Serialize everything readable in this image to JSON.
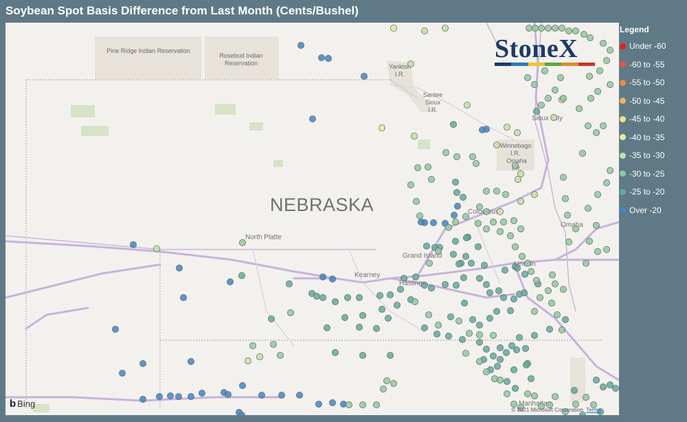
{
  "title": "Soybean Spot Basis Difference from Last Month (Cents/Bushel)",
  "map": {
    "state_label": "NEBRASKA",
    "reservations": [
      "Pine Ridge Indian Reservation",
      "Rosebud Indian Reservation",
      "Yankton I.R.",
      "Santee Sioux I.R.",
      "Winnebago I.R.",
      "Omaha I.R."
    ],
    "cities": [
      "North Platte",
      "Kearney",
      "Grand Island",
      "Hastings",
      "Columbus",
      "Omaha",
      "Lincoln",
      "Sioux City",
      "Manhattan"
    ],
    "attribution_bing": "Bing",
    "copyright": "© 2021 Microsoft Corporation",
    "terms": "Terms"
  },
  "logo": {
    "text": "StoneX",
    "bar_colors": [
      "#1d3a66",
      "#2a7bc0",
      "#f1c232",
      "#58a846",
      "#e08b2a",
      "#c0392b"
    ]
  },
  "legend": {
    "title": "Legend",
    "items": [
      {
        "label": "Under -60",
        "color": "#e02020"
      },
      {
        "label": "-60 to -55",
        "color": "#e8553a"
      },
      {
        "label": "-55 to -50",
        "color": "#f08a3c"
      },
      {
        "label": "-50 to -45",
        "color": "#f5b35a"
      },
      {
        "label": "-45 to -40",
        "color": "#f8de86"
      },
      {
        "label": "-40 to -35",
        "color": "#e4eba3"
      },
      {
        "label": "-35 to -30",
        "color": "#bfe0a3"
      },
      {
        "label": "-30 to -25",
        "color": "#8ec9a0"
      },
      {
        "label": "-25 to -20",
        "color": "#5fab9d"
      },
      {
        "label": "Over -20",
        "color": "#3f86c4"
      }
    ]
  }
}
